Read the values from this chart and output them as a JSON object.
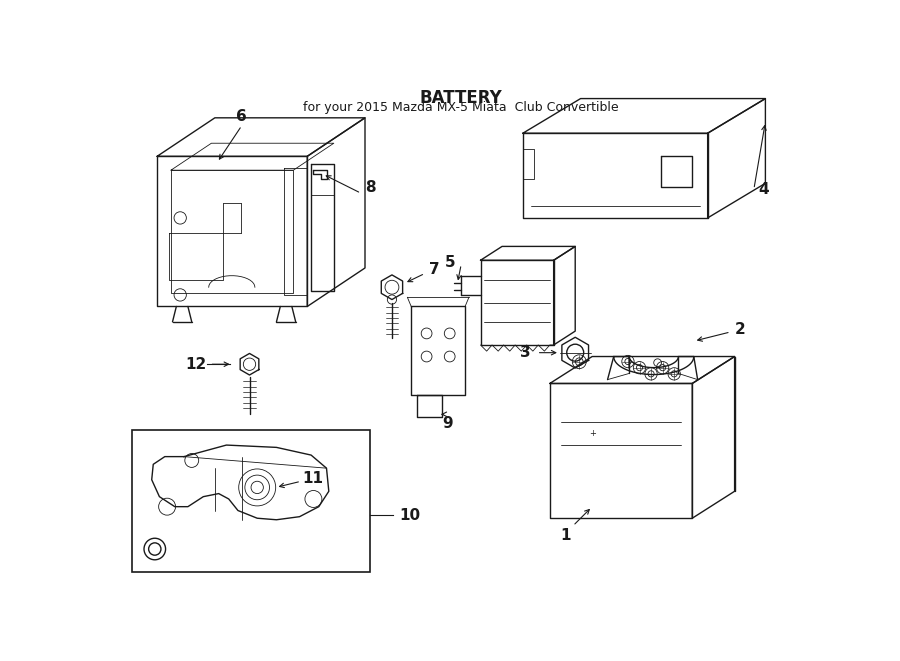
{
  "title": "BATTERY",
  "subtitle": "for your 2015 Mazda MX-5 Miata  Club Convertible",
  "background_color": "#ffffff",
  "line_color": "#1a1a1a",
  "figsize": [
    9.0,
    6.61
  ],
  "dpi": 100,
  "label_fontsize": 11,
  "title_fontsize": 12,
  "subtitle_fontsize": 9
}
